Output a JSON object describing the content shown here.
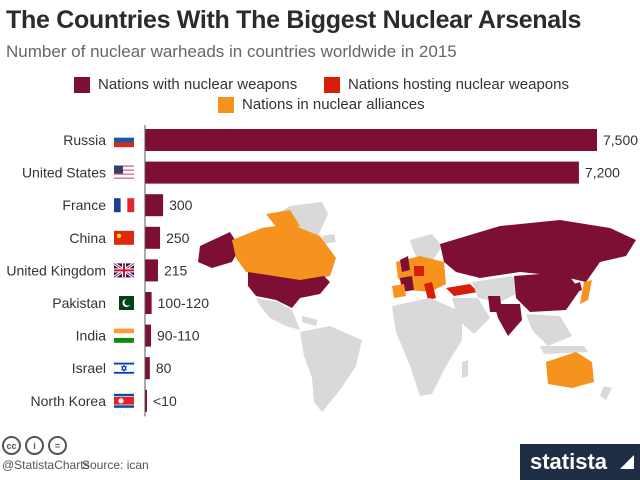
{
  "header": {
    "title": "The Countries With The Biggest Nuclear Arsenals",
    "subtitle": "Number of nuclear warheads in countries worldwide in 2015"
  },
  "legend": [
    {
      "label": "Nations with nuclear weapons",
      "color": "#7d0f35"
    },
    {
      "label": "Nations hosting nuclear weapons",
      "color": "#d81e0b"
    },
    {
      "label": "Nations in nuclear alliances",
      "color": "#f6921e"
    }
  ],
  "chart_data": {
    "type": "bar",
    "orientation": "horizontal",
    "title": "The Countries With The Biggest Nuclear Arsenals",
    "subtitle": "Number of nuclear warheads in countries worldwide in 2015",
    "categories": [
      "Russia",
      "United States",
      "France",
      "China",
      "United Kingdom",
      "Pakistan",
      "India",
      "Israel",
      "North Korea"
    ],
    "values": [
      7500,
      7200,
      300,
      250,
      215,
      110,
      100,
      80,
      10
    ],
    "labels": [
      "7,500",
      "7,200",
      "300",
      "250",
      "215",
      "100-120",
      "90-110",
      "80",
      "<10"
    ],
    "xlim": [
      0,
      7500
    ],
    "bar_color": "#7d0f35",
    "grid": false
  },
  "flags": [
    "russia-flag-icon",
    "us-flag-icon",
    "france-flag-icon",
    "china-flag-icon",
    "uk-flag-icon",
    "pakistan-flag-icon",
    "india-flag-icon",
    "israel-flag-icon",
    "north-korea-flag-icon"
  ],
  "footer": {
    "handle": "@StatistaCharts",
    "source": "Source: ican",
    "brand": "statista",
    "license_icons": [
      "cc-icon",
      "by-icon",
      "nd-icon"
    ]
  }
}
